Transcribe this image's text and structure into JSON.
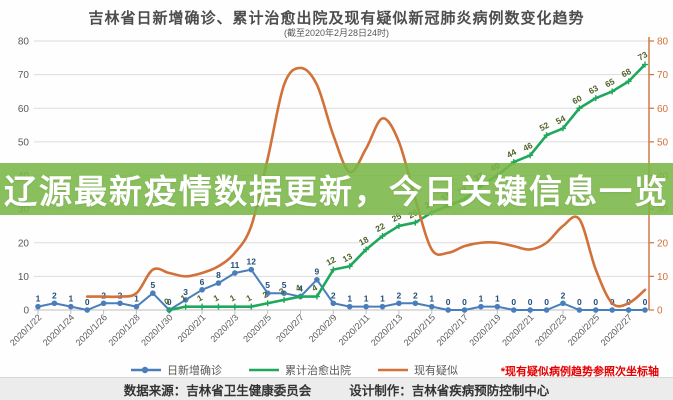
{
  "title": "吉林省日新增确诊、累计治愈出院及现有疑似新冠肺炎病例数变化趋势",
  "subtitle": "(截至2020年2月28日24时)",
  "overlay_banner": {
    "text": "辽源最新疫情数据更新，今日关键信息一览",
    "background": "#7ab648"
  },
  "secondary_axis_note": {
    "text": "*现有疑似病例趋势参照次坐标轴",
    "color": "#e60000"
  },
  "footer": {
    "source_label": "数据来源：吉林省卫生健康委员会",
    "design_label": "设计制作：吉林省疾病预防控制中心"
  },
  "colors": {
    "new_confirmed": "#4a7ebb",
    "cured": "#1fa85c",
    "suspected": "#d2713a",
    "grid": "#dcdcdc",
    "axis_text": "#595959",
    "blue_label": "#1f4e79",
    "green_label": "#4f6228"
  },
  "legend": [
    {
      "label": "日新增确诊",
      "color": "#4a7ebb",
      "marker": "circle"
    },
    {
      "label": "累计治愈出院",
      "color": "#1fa85c",
      "marker": "line"
    },
    {
      "label": "现有疑似",
      "color": "#d2713a",
      "marker": "line"
    }
  ],
  "chart_data": {
    "type": "line",
    "title": "吉林省日新增确诊、累计治愈出院及现有疑似新冠肺炎病例数变化趋势",
    "subtitle": "(截至2020年2月28日24时)",
    "x": [
      "2020/1/22",
      "2020/1/23",
      "2020/1/24",
      "2020/1/25",
      "2020/1/26",
      "2020/1/27",
      "2020/1/28",
      "2020/1/29",
      "2020/1/30",
      "2020/1/31",
      "2020/2/1",
      "2020/2/2",
      "2020/2/3",
      "2020/2/4",
      "2020/2/5",
      "2020/2/6",
      "2020/2/7",
      "2020/2/8",
      "2020/2/9",
      "2020/2/10",
      "2020/2/11",
      "2020/2/12",
      "2020/2/13",
      "2020/2/14",
      "2020/2/15",
      "2020/2/16",
      "2020/2/17",
      "2020/2/18",
      "2020/2/19",
      "2020/2/20",
      "2020/2/21",
      "2020/2/22",
      "2020/2/23",
      "2020/2/24",
      "2020/2/25",
      "2020/2/26",
      "2020/2/27",
      "2020/2/28"
    ],
    "x_tick_labels": [
      "2020/1/22",
      "2020/1/24",
      "2020/1/26",
      "2020/1/28",
      "2020/1/30",
      "2020/2/1",
      "2020/2/3",
      "2020/2/5",
      "2020/2/7",
      "2020/2/9",
      "2020/2/11",
      "2020/2/13",
      "2020/2/15",
      "2020/2/17",
      "2020/2/19",
      "2020/2/21",
      "2020/2/23",
      "2020/2/25",
      "2020/2/27"
    ],
    "left_axis": {
      "min": 0,
      "max": 80,
      "step": 10
    },
    "right_axis": {
      "min": 0,
      "max": 80,
      "step": 10,
      "color": "#d2713a"
    },
    "grid": true,
    "legend_position": "bottom",
    "series": [
      {
        "name": "日新增确诊",
        "axis": "left",
        "color": "#4a7ebb",
        "style": "line-markers-labels",
        "values": [
          1,
          2,
          1,
          0,
          2,
          2,
          1,
          5,
          0,
          3,
          6,
          8,
          11,
          12,
          5,
          5,
          4,
          9,
          2,
          1,
          1,
          1,
          2,
          2,
          1,
          0,
          0,
          1,
          1,
          0,
          0,
          0,
          2,
          0,
          0,
          0,
          0,
          0
        ]
      },
      {
        "name": "累计治愈出院",
        "axis": "left",
        "color": "#1fa85c",
        "style": "line-plus-labels",
        "values": [
          null,
          null,
          null,
          null,
          null,
          null,
          null,
          null,
          0,
          1,
          1,
          1,
          1,
          1,
          2,
          3,
          4,
          4,
          12,
          13,
          18,
          22,
          25,
          26,
          29,
          31,
          33,
          37,
          40,
          44,
          46,
          52,
          54,
          60,
          63,
          65,
          68,
          73
        ]
      },
      {
        "name": "现有疑似",
        "axis": "right",
        "color": "#d2713a",
        "style": "smooth",
        "values": [
          null,
          null,
          null,
          4,
          4,
          4,
          5,
          12,
          11,
          10,
          11,
          13,
          17,
          25,
          45,
          67,
          72,
          67,
          52,
          41,
          48,
          57,
          50,
          33,
          18,
          17,
          19,
          20,
          20,
          19,
          18,
          20,
          25,
          27,
          12,
          2,
          2,
          6
        ]
      }
    ]
  }
}
